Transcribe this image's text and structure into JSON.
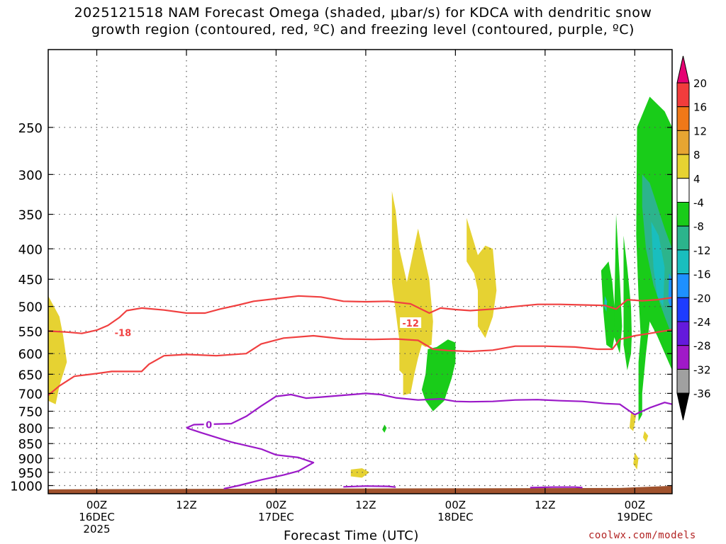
{
  "title": {
    "line1": "2025121518 NAM Forecast Omega (shaded, μbar/s) for KDCA with dendritic snow",
    "line2": "growth region (contoured, red, ºC) and freezing level (contoured, purple, ºC)"
  },
  "credit": "coolwx.com/models",
  "chart_data": {
    "type": "time-height",
    "xlabel": "Forecast Time (UTC)",
    "ylabel": "",
    "x_range_hours": [
      -6.5,
      77
    ],
    "y_range_hpa": [
      1032,
      185
    ],
    "y_ticks": [
      "250",
      "300",
      "350",
      "400",
      "450",
      "500",
      "550",
      "600",
      "650",
      "700",
      "750",
      "800",
      "850",
      "900",
      "950",
      "1000"
    ],
    "x_ticks": [
      {
        "hour": 0,
        "lines": [
          "00Z",
          "16DEC",
          "2025"
        ]
      },
      {
        "hour": 12,
        "lines": [
          "12Z"
        ]
      },
      {
        "hour": 24,
        "lines": [
          "00Z",
          "17DEC"
        ]
      },
      {
        "hour": 36,
        "lines": [
          "12Z"
        ]
      },
      {
        "hour": 48,
        "lines": [
          "00Z",
          "18DEC"
        ]
      },
      {
        "hour": 60,
        "lines": [
          "12Z"
        ]
      },
      {
        "hour": 72,
        "lines": [
          "00Z",
          "19DEC"
        ]
      }
    ],
    "grid": true,
    "colorbar": {
      "labels": [
        "20",
        "16",
        "12",
        "8",
        "4",
        "-4",
        "-8",
        "-12",
        "-16",
        "-20",
        "-24",
        "-28",
        "-32",
        "-36"
      ],
      "colors": [
        "#e60073",
        "#f23c3c",
        "#f07818",
        "#e6a532",
        "#e6d232",
        "#ffffff",
        "#19cc19",
        "#2cb48c",
        "#19bebe",
        "#1e90ff",
        "#1e3cff",
        "#6419dc",
        "#a019c8",
        "#a0a0a0",
        "#000000"
      ]
    },
    "contours": [
      {
        "name": "-18",
        "color": "#f04040",
        "label_at": {
          "hour": 3.5,
          "hpa": 553
        },
        "points": [
          [
            -6.5,
            550
          ],
          [
            -4,
            552
          ],
          [
            -2,
            555
          ],
          [
            0,
            548
          ],
          [
            1.5,
            538
          ],
          [
            3,
            522
          ],
          [
            4,
            508
          ],
          [
            6,
            503
          ],
          [
            9,
            507
          ],
          [
            12,
            513
          ],
          [
            14.5,
            513
          ],
          [
            16.5,
            505
          ],
          [
            19,
            497
          ],
          [
            21,
            490
          ],
          [
            24,
            485
          ],
          [
            27,
            480
          ],
          [
            30,
            482
          ],
          [
            33,
            490
          ],
          [
            36,
            491
          ],
          [
            39,
            490
          ],
          [
            42,
            495
          ],
          [
            44.5,
            513
          ],
          [
            46,
            503
          ],
          [
            48,
            506
          ],
          [
            50,
            508
          ],
          [
            53,
            505
          ],
          [
            56,
            500
          ],
          [
            59,
            496
          ],
          [
            62,
            496
          ],
          [
            65,
            497
          ],
          [
            68,
            498
          ],
          [
            69.5,
            505
          ],
          [
            71,
            487
          ],
          [
            73,
            489
          ],
          [
            75,
            487
          ],
          [
            77,
            483
          ]
        ]
      },
      {
        "name": "-12",
        "color": "#f04040",
        "label_at": {
          "hour": 42,
          "hpa": 533
        },
        "points": [
          [
            -6.5,
            705
          ],
          [
            -5,
            680
          ],
          [
            -3,
            655
          ],
          [
            0,
            648
          ],
          [
            2,
            643
          ],
          [
            6,
            643
          ],
          [
            7,
            625
          ],
          [
            9,
            605
          ],
          [
            12,
            602
          ],
          [
            16,
            605
          ],
          [
            20,
            600
          ],
          [
            22,
            578
          ],
          [
            25,
            565
          ],
          [
            29,
            560
          ],
          [
            33,
            567
          ],
          [
            37,
            568
          ],
          [
            40,
            567
          ],
          [
            43,
            570
          ],
          [
            45,
            590
          ],
          [
            47,
            593
          ],
          [
            50,
            595
          ],
          [
            53,
            592
          ],
          [
            56,
            583
          ],
          [
            60,
            583
          ],
          [
            64,
            585
          ],
          [
            67,
            590
          ],
          [
            69,
            590
          ],
          [
            70,
            568
          ],
          [
            72,
            560
          ],
          [
            74,
            555
          ],
          [
            77,
            547
          ]
        ]
      },
      {
        "name": "0",
        "color": "#9b19c8",
        "label_at": {
          "hour": 15,
          "hpa": 790
        },
        "points": [
          [
            12,
            800
          ],
          [
            13,
            790
          ],
          [
            18,
            787
          ],
          [
            20,
            765
          ],
          [
            22,
            735
          ],
          [
            24,
            708
          ],
          [
            26,
            703
          ],
          [
            28,
            713
          ],
          [
            30,
            710
          ],
          [
            33,
            705
          ],
          [
            36,
            700
          ],
          [
            38,
            703
          ],
          [
            40,
            712
          ],
          [
            43,
            718
          ],
          [
            46,
            715
          ],
          [
            48,
            722
          ],
          [
            50,
            723
          ],
          [
            53,
            722
          ],
          [
            56,
            718
          ],
          [
            59,
            717
          ],
          [
            62,
            720
          ],
          [
            65,
            722
          ],
          [
            68,
            728
          ],
          [
            70,
            730
          ],
          [
            72,
            760
          ],
          [
            74,
            740
          ],
          [
            76,
            725
          ],
          [
            77,
            730
          ]
        ]
      },
      {
        "name": "0",
        "color": "#9b19c8",
        "label_at": null,
        "points": [
          [
            12,
            800
          ],
          [
            14,
            815
          ],
          [
            18,
            845
          ],
          [
            22,
            868
          ],
          [
            24,
            888
          ],
          [
            27,
            897
          ],
          [
            29,
            915
          ],
          [
            27,
            945
          ],
          [
            25,
            960
          ],
          [
            22,
            978
          ],
          [
            19,
            1000
          ],
          [
            17,
            1012
          ]
        ]
      },
      {
        "name": "0",
        "color": "#9b19c8",
        "label_at": null,
        "points": [
          [
            33,
            1005
          ],
          [
            36,
            1002
          ],
          [
            39,
            1003
          ],
          [
            40,
            1006
          ]
        ]
      },
      {
        "name": "0",
        "color": "#9b19c8",
        "label_at": null,
        "points": [
          [
            58,
            1008
          ],
          [
            61,
            1006
          ],
          [
            64,
            1006
          ],
          [
            65,
            1008
          ]
        ]
      }
    ],
    "omega_regions": [
      {
        "value": "4 to 8",
        "color": "#e6d232",
        "points": [
          [
            -6.5,
            480
          ],
          [
            -5,
            520
          ],
          [
            -4.5,
            560
          ],
          [
            -4,
            620
          ],
          [
            -5,
            680
          ],
          [
            -5.5,
            730
          ],
          [
            -6.5,
            720
          ]
        ]
      },
      {
        "value": "4 to 8",
        "color": "#e6d232",
        "points": [
          [
            34,
            940
          ],
          [
            35.5,
            935
          ],
          [
            36.5,
            950
          ],
          [
            35.5,
            970
          ],
          [
            34,
            965
          ]
        ]
      },
      {
        "value": "4 to 8",
        "color": "#e6d232",
        "points": [
          [
            39.5,
            320
          ],
          [
            40,
            345
          ],
          [
            40.5,
            400
          ],
          [
            41.5,
            455
          ],
          [
            43,
            370
          ],
          [
            44.5,
            450
          ],
          [
            45,
            530
          ],
          [
            44.8,
            580
          ],
          [
            44,
            585
          ],
          [
            43.5,
            580
          ],
          [
            43,
            610
          ],
          [
            42.5,
            650
          ],
          [
            42,
            700
          ],
          [
            41,
            705
          ],
          [
            41,
            650
          ],
          [
            40.5,
            640
          ],
          [
            40.5,
            570
          ],
          [
            39.5,
            455
          ]
        ]
      },
      {
        "value": "4 to 8",
        "color": "#e6d232",
        "points": [
          [
            49.5,
            355
          ],
          [
            51,
            410
          ],
          [
            52,
            395
          ],
          [
            53,
            400
          ],
          [
            53.5,
            470
          ],
          [
            53,
            520
          ],
          [
            52,
            565
          ],
          [
            51,
            540
          ],
          [
            51,
            470
          ],
          [
            50.5,
            440
          ],
          [
            49.5,
            420
          ]
        ]
      },
      {
        "value": "4 to 8",
        "color": "#e6d232",
        "points": [
          [
            71.5,
            755
          ],
          [
            72.2,
            760
          ],
          [
            71.8,
            810
          ],
          [
            71.3,
            800
          ]
        ]
      },
      {
        "value": "4 to 8",
        "color": "#e6d232",
        "points": [
          [
            73.3,
            810
          ],
          [
            73.8,
            825
          ],
          [
            73.5,
            845
          ],
          [
            73.1,
            830
          ]
        ]
      },
      {
        "value": "4 to 8",
        "color": "#e6d232",
        "points": [
          [
            72,
            880
          ],
          [
            72.5,
            900
          ],
          [
            72.3,
            940
          ],
          [
            71.8,
            920
          ]
        ]
      },
      {
        "value": "-4 to -8",
        "color": "#19cc19",
        "points": [
          [
            38.5,
            790
          ],
          [
            38.8,
            800
          ],
          [
            38.5,
            815
          ],
          [
            38.2,
            805
          ]
        ]
      },
      {
        "value": "-4 to -8",
        "color": "#19cc19",
        "points": [
          [
            44.3,
            590
          ],
          [
            45.5,
            585
          ],
          [
            47,
            568
          ],
          [
            48,
            575
          ],
          [
            48,
            620
          ],
          [
            47.5,
            660
          ],
          [
            46.5,
            720
          ],
          [
            45,
            750
          ],
          [
            44,
            720
          ],
          [
            43.5,
            690
          ],
          [
            44,
            650
          ]
        ]
      },
      {
        "value": "-4 to -8",
        "color": "#19cc19",
        "points": [
          [
            67.5,
            435
          ],
          [
            68.5,
            420
          ],
          [
            69,
            455
          ],
          [
            69.5,
            540
          ],
          [
            69,
            590
          ],
          [
            68.2,
            580
          ],
          [
            67.8,
            510
          ]
        ]
      },
      {
        "value": "-4 to -8",
        "color": "#19cc19",
        "points": [
          [
            69.5,
            350
          ],
          [
            70,
            450
          ],
          [
            70.3,
            540
          ],
          [
            70,
            600
          ],
          [
            69.2,
            560
          ]
        ]
      },
      {
        "value": "-4 to -8",
        "color": "#19cc19",
        "points": [
          [
            70.5,
            380
          ],
          [
            71,
            430
          ],
          [
            71.5,
            500
          ],
          [
            71.6,
            560
          ],
          [
            71.5,
            600
          ],
          [
            71,
            640
          ],
          [
            70.5,
            580
          ]
        ]
      },
      {
        "value": "-4 to -8",
        "color": "#19cc19",
        "points": [
          [
            72.3,
            250
          ],
          [
            74,
            222
          ],
          [
            76,
            235
          ],
          [
            77,
            250
          ],
          [
            77,
            640
          ],
          [
            75,
            560
          ],
          [
            74,
            530
          ],
          [
            73.5,
            600
          ],
          [
            73,
            700
          ],
          [
            73,
            760
          ],
          [
            72.5,
            780
          ],
          [
            72.5,
            620
          ],
          [
            72.8,
            560
          ],
          [
            72.5,
            480
          ],
          [
            72.2,
            380
          ]
        ]
      },
      {
        "value": "-8 to -12",
        "color": "#2cb48c",
        "points": [
          [
            73,
            300
          ],
          [
            74,
            310
          ],
          [
            76,
            370
          ],
          [
            77,
            400
          ],
          [
            77,
            560
          ],
          [
            76,
            520
          ],
          [
            74.5,
            460
          ],
          [
            73.5,
            400
          ],
          [
            73,
            340
          ]
        ]
      },
      {
        "value": "-12 to -16",
        "color": "#19bebe",
        "points": [
          [
            74.2,
            360
          ],
          [
            75.2,
            380
          ],
          [
            76,
            430
          ],
          [
            75.8,
            500
          ],
          [
            75,
            480
          ],
          [
            74.5,
            430
          ]
        ]
      },
      {
        "value": "-12 to -16",
        "color": "#19bebe",
        "points": [
          [
            68,
            480
          ],
          [
            68.3,
            490
          ],
          [
            68.2,
            510
          ],
          [
            67.9,
            500
          ]
        ]
      },
      {
        "value": "-16 to -20",
        "color": "#1e90ff",
        "points": [
          [
            76.6,
            440
          ],
          [
            77,
            450
          ],
          [
            77,
            510
          ],
          [
            76.5,
            490
          ]
        ]
      }
    ],
    "terrain_hpa": 1012
  }
}
